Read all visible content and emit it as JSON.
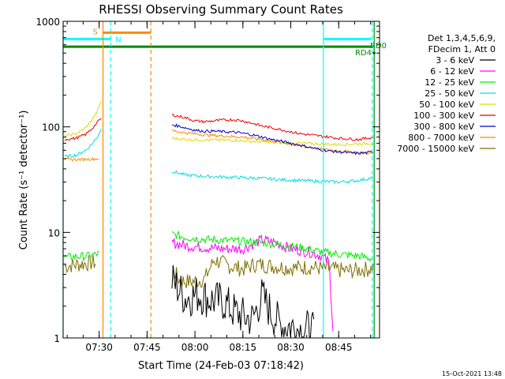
{
  "chart_data": {
    "type": "line",
    "title": "RHESSI Observing Summary Count Rates",
    "xlabel": "Start Time (24-Feb-03 07:18:42)",
    "ylabel": "Count Rate (s⁻¹ detector⁻¹)",
    "y_scale": "log",
    "ylim": [
      1,
      1000
    ],
    "xlim": [
      7.312,
      8.963
    ],
    "x_unit": "hours (UT)",
    "x_ticks": [
      {
        "value": 7.5,
        "label": "07:30"
      },
      {
        "value": 7.75,
        "label": "07:45"
      },
      {
        "value": 8.0,
        "label": "08:00"
      },
      {
        "value": 8.25,
        "label": "08:15"
      },
      {
        "value": 8.5,
        "label": "08:30"
      },
      {
        "value": 8.75,
        "label": "08:45"
      }
    ],
    "y_ticks": [
      {
        "value": 1,
        "label": "1"
      },
      {
        "value": 10,
        "label": "10"
      },
      {
        "value": 100,
        "label": "100"
      },
      {
        "value": 1000,
        "label": "1000"
      }
    ],
    "legend": {
      "position": "right",
      "header": [
        "Det 1,3,4,5,6,9,",
        "FDecim 1, Att 0"
      ]
    },
    "series": [
      {
        "name": "3 - 6 keV",
        "color": "#000000",
        "segments": [
          [
            [
              7.88,
              3.5
            ],
            [
              7.95,
              2.4
            ],
            [
              8.02,
              2.6
            ],
            [
              8.08,
              2.3
            ],
            [
              8.15,
              2.2
            ],
            [
              8.2,
              1.8
            ],
            [
              8.25,
              1.6
            ],
            [
              8.3,
              1.5
            ],
            [
              8.35,
              2.5
            ],
            [
              8.4,
              1.7
            ],
            [
              8.45,
              1.3
            ],
            [
              8.5,
              1.3
            ],
            [
              8.55,
              1.2
            ],
            [
              8.6,
              1.2
            ],
            [
              8.62,
              1.1
            ]
          ]
        ]
      },
      {
        "name": "6 - 12 keV",
        "color": "#ff00ff",
        "segments": [
          [
            [
              7.88,
              8
            ],
            [
              7.95,
              7.5
            ],
            [
              8.05,
              7.2
            ],
            [
              8.15,
              7
            ],
            [
              8.25,
              7
            ],
            [
              8.35,
              8.5
            ],
            [
              8.42,
              8
            ],
            [
              8.5,
              7
            ],
            [
              8.6,
              6.5
            ],
            [
              8.66,
              6
            ],
            [
              8.7,
              5.2
            ],
            [
              8.72,
              1.2
            ]
          ]
        ]
      },
      {
        "name": "12 - 25 keV",
        "color": "#00ee00",
        "segments": [
          [
            [
              7.32,
              5.8
            ],
            [
              7.45,
              6
            ],
            [
              7.5,
              6.3
            ]
          ],
          [
            [
              7.88,
              9.6
            ],
            [
              7.95,
              9
            ],
            [
              8.05,
              8.6
            ],
            [
              8.15,
              8.4
            ],
            [
              8.25,
              8.2
            ],
            [
              8.35,
              8
            ],
            [
              8.45,
              7.6
            ],
            [
              8.55,
              7.2
            ],
            [
              8.65,
              6.6
            ],
            [
              8.75,
              6.2
            ],
            [
              8.85,
              6
            ],
            [
              8.93,
              5.6
            ]
          ]
        ]
      },
      {
        "name": "25 - 50 keV",
        "color": "#00dddd",
        "segments": [
          [
            [
              7.32,
              52
            ],
            [
              7.38,
              54
            ],
            [
              7.43,
              60
            ],
            [
              7.46,
              68
            ],
            [
              7.49,
              80
            ],
            [
              7.51,
              95
            ]
          ],
          [
            [
              7.88,
              38
            ],
            [
              7.95,
              35
            ],
            [
              8.05,
              34
            ],
            [
              8.15,
              33.5
            ],
            [
              8.25,
              33
            ],
            [
              8.35,
              32.5
            ],
            [
              8.45,
              31.5
            ],
            [
              8.55,
              31
            ],
            [
              8.65,
              30.5
            ],
            [
              8.75,
              30
            ],
            [
              8.85,
              31
            ],
            [
              8.93,
              33
            ]
          ]
        ]
      },
      {
        "name": "50 - 100 keV",
        "color": "#dddd00",
        "segments": [
          [
            [
              7.32,
              82
            ],
            [
              7.38,
              86
            ],
            [
              7.43,
              98
            ],
            [
              7.46,
              115
            ],
            [
              7.49,
              140
            ],
            [
              7.51,
              175
            ]
          ],
          [
            [
              7.88,
              78
            ],
            [
              7.95,
              76
            ],
            [
              8.05,
              75
            ],
            [
              8.15,
              75
            ],
            [
              8.25,
              74
            ],
            [
              8.35,
              72
            ],
            [
              8.45,
              71
            ],
            [
              8.55,
              70
            ],
            [
              8.65,
              69
            ],
            [
              8.75,
              68
            ],
            [
              8.85,
              69
            ],
            [
              8.93,
              70
            ]
          ]
        ]
      },
      {
        "name": "100 - 300 keV",
        "color": "#ee0000",
        "segments": [
          [
            [
              7.32,
              76
            ],
            [
              7.38,
              78
            ],
            [
              7.43,
              85
            ],
            [
              7.46,
              95
            ],
            [
              7.49,
              110
            ],
            [
              7.51,
              120
            ]
          ],
          [
            [
              7.88,
              130
            ],
            [
              7.95,
              122
            ],
            [
              8.0,
              114
            ],
            [
              8.05,
              112
            ],
            [
              8.1,
              114
            ],
            [
              8.15,
              116
            ],
            [
              8.2,
              117
            ],
            [
              8.25,
              114
            ],
            [
              8.3,
              108
            ],
            [
              8.35,
              102
            ],
            [
              8.4,
              98
            ],
            [
              8.45,
              94
            ],
            [
              8.5,
              90
            ],
            [
              8.55,
              86
            ],
            [
              8.6,
              84
            ],
            [
              8.65,
              82
            ],
            [
              8.7,
              80
            ],
            [
              8.75,
              78
            ],
            [
              8.8,
              77
            ],
            [
              8.85,
              76
            ],
            [
              8.9,
              78
            ],
            [
              8.93,
              80
            ]
          ]
        ]
      },
      {
        "name": "300 - 800 keV",
        "color": "#0000cc",
        "segments": [
          [
            [
              7.88,
              105
            ],
            [
              7.95,
              98
            ],
            [
              8.0,
              93
            ],
            [
              8.05,
              91
            ],
            [
              8.1,
              91
            ],
            [
              8.15,
              90
            ],
            [
              8.2,
              89
            ],
            [
              8.25,
              87
            ],
            [
              8.3,
              84
            ],
            [
              8.35,
              80
            ],
            [
              8.4,
              76
            ],
            [
              8.45,
              73
            ],
            [
              8.5,
              70
            ],
            [
              8.55,
              67
            ],
            [
              8.6,
              64
            ],
            [
              8.65,
              61
            ],
            [
              8.7,
              59
            ],
            [
              8.75,
              58
            ],
            [
              8.8,
              57
            ],
            [
              8.85,
              56
            ],
            [
              8.9,
              57
            ],
            [
              8.93,
              58
            ]
          ]
        ]
      },
      {
        "name": "800 - 7000 keV",
        "color": "#ff8800",
        "segments": [
          [
            [
              7.32,
              49
            ],
            [
              7.4,
              49
            ],
            [
              7.5,
              50
            ]
          ],
          [
            [
              7.88,
              92
            ],
            [
              7.95,
              88
            ],
            [
              8.05,
              84
            ],
            [
              8.15,
              82
            ],
            [
              8.25,
              80
            ],
            [
              8.35,
              76
            ],
            [
              8.45,
              71
            ],
            [
              8.55,
              66
            ],
            [
              8.65,
              62
            ],
            [
              8.75,
              59
            ],
            [
              8.85,
              57
            ],
            [
              8.93,
              56
            ]
          ]
        ]
      },
      {
        "name": "7000 - 15000 keV",
        "color": "#7f6f00",
        "segments": [
          [
            [
              7.32,
              4.8
            ],
            [
              7.4,
              5
            ],
            [
              7.48,
              5.2
            ]
          ],
          [
            [
              7.88,
              4.6
            ],
            [
              7.92,
              3.5
            ],
            [
              7.98,
              3.4
            ],
            [
              8.05,
              3.6
            ],
            [
              8.1,
              5.5
            ],
            [
              8.18,
              4.8
            ],
            [
              8.25,
              4.5
            ],
            [
              8.32,
              5
            ],
            [
              8.4,
              4.8
            ],
            [
              8.5,
              4.6
            ],
            [
              8.6,
              4.7
            ],
            [
              8.7,
              4.5
            ],
            [
              8.8,
              4.3
            ],
            [
              8.9,
              4.5
            ],
            [
              8.93,
              4.6
            ]
          ]
        ]
      }
    ],
    "annotations": {
      "bar_S": {
        "label": "S",
        "x_start": 7.52,
        "x_end": 7.77,
        "y": 780,
        "color": "#ff8800"
      },
      "bar_N_left": {
        "label": "N",
        "x_start": 7.312,
        "x_end": 7.56,
        "y": 680,
        "color": "#00ffff"
      },
      "bar_N_right": {
        "label": "",
        "x_start": 8.67,
        "x_end": 8.92,
        "y": 680,
        "color": "#00ffff"
      },
      "bar_RD4": {
        "label": "RD4",
        "x_start": 7.312,
        "x_end": 8.93,
        "y": 575,
        "color": "#008800"
      },
      "label_RD0": {
        "label": "RD0",
        "color": "#008800"
      },
      "vlines": [
        {
          "x": 7.312,
          "color": "#00ffff",
          "style": "solid"
        },
        {
          "x": 7.52,
          "color": "#ff8800",
          "style": "solid"
        },
        {
          "x": 7.56,
          "color": "#00ffff",
          "style": "dashed"
        },
        {
          "x": 7.77,
          "color": "#ff8800",
          "style": "dashed"
        },
        {
          "x": 8.67,
          "color": "#00ffff",
          "style": "solid"
        },
        {
          "x": 8.925,
          "color": "#00ffff",
          "style": "dashed"
        },
        {
          "x": 8.935,
          "color": "#008800",
          "style": "solid"
        }
      ]
    },
    "footer_timestamp": "15-Oct-2021 13:48"
  }
}
